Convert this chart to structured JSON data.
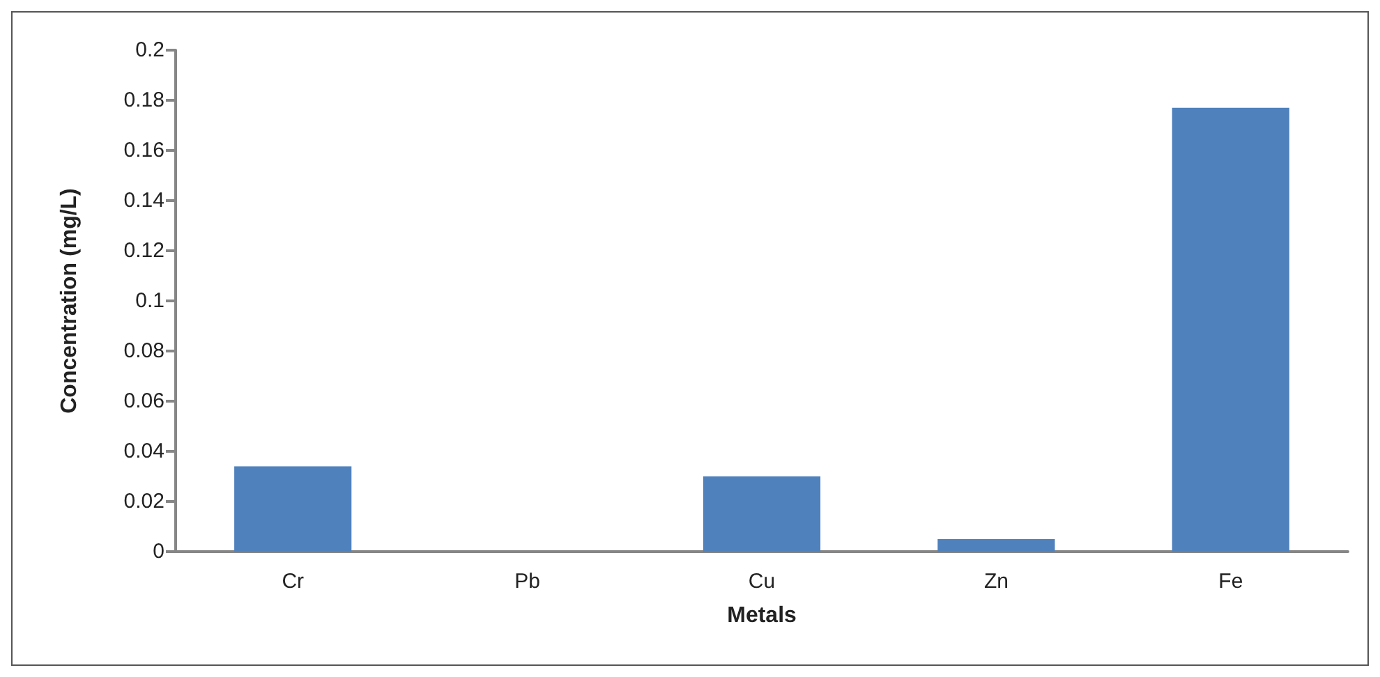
{
  "chart_data": {
    "type": "bar",
    "xlabel": "Metals",
    "ylabel": "Concentration (mg/L)",
    "categories": [
      "Cr",
      "Pb",
      "Cu",
      "Zn",
      "Fe"
    ],
    "values": [
      0.034,
      0,
      0.03,
      0.005,
      0.177
    ],
    "color": "#4f81bd",
    "ylim": [
      0,
      0.2
    ],
    "yticks": [
      0,
      0.02,
      0.04,
      0.06,
      0.08,
      0.1,
      0.12,
      0.14,
      0.16,
      0.18,
      0.2
    ],
    "grid": false
  }
}
